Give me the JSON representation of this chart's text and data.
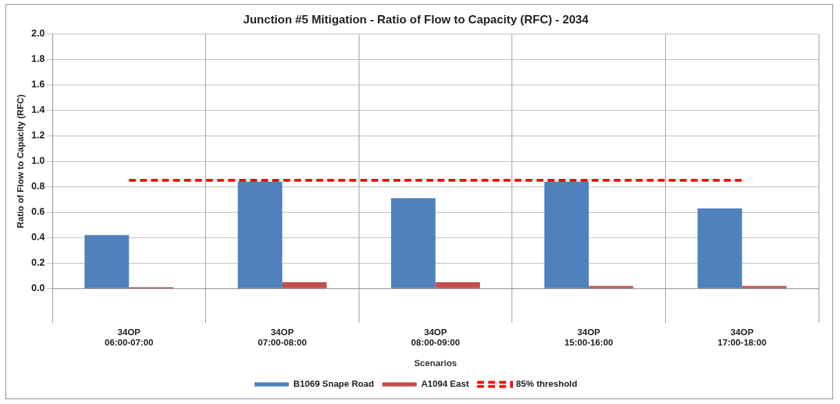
{
  "chart_data": {
    "type": "bar",
    "title": "Junction #5 Mitigation - Ratio of Flow to Capacity (RFC) - 2034",
    "xlabel": "Scenarios",
    "ylabel": "Ratio of Flow to Capacity (RFC)",
    "categories": [
      "34OP\n06:00-07:00",
      "34OP\n07:00-08:00",
      "34OP\n08:00-09:00",
      "34OP\n15:00-16:00",
      "34OP\n17:00-18:00"
    ],
    "series": [
      {
        "name": "B1069 Snape Road",
        "color": "#4f81bd",
        "values": [
          0.42,
          0.84,
          0.71,
          0.84,
          0.63
        ]
      },
      {
        "name": "A1094 East",
        "color": "#c0504d",
        "values": [
          0.01,
          0.05,
          0.05,
          0.02,
          0.02
        ]
      },
      {
        "name": "85% threshold",
        "type": "line",
        "line_style": "dashed",
        "marker": "none",
        "color": "#ff0000",
        "values": [
          0.85,
          0.85,
          0.85,
          0.85,
          0.85
        ]
      }
    ],
    "ylim": [
      0,
      2
    ],
    "yticks": [
      {
        "value": 0,
        "label": "0.0"
      },
      0.2,
      0.4,
      0.6,
      0.8,
      {
        "value": 1,
        "label": "1.0"
      },
      1.2,
      1.4,
      1.6,
      1.8,
      {
        "value": 2,
        "label": "2.0"
      }
    ],
    "grid": true,
    "legend": "bottom"
  }
}
